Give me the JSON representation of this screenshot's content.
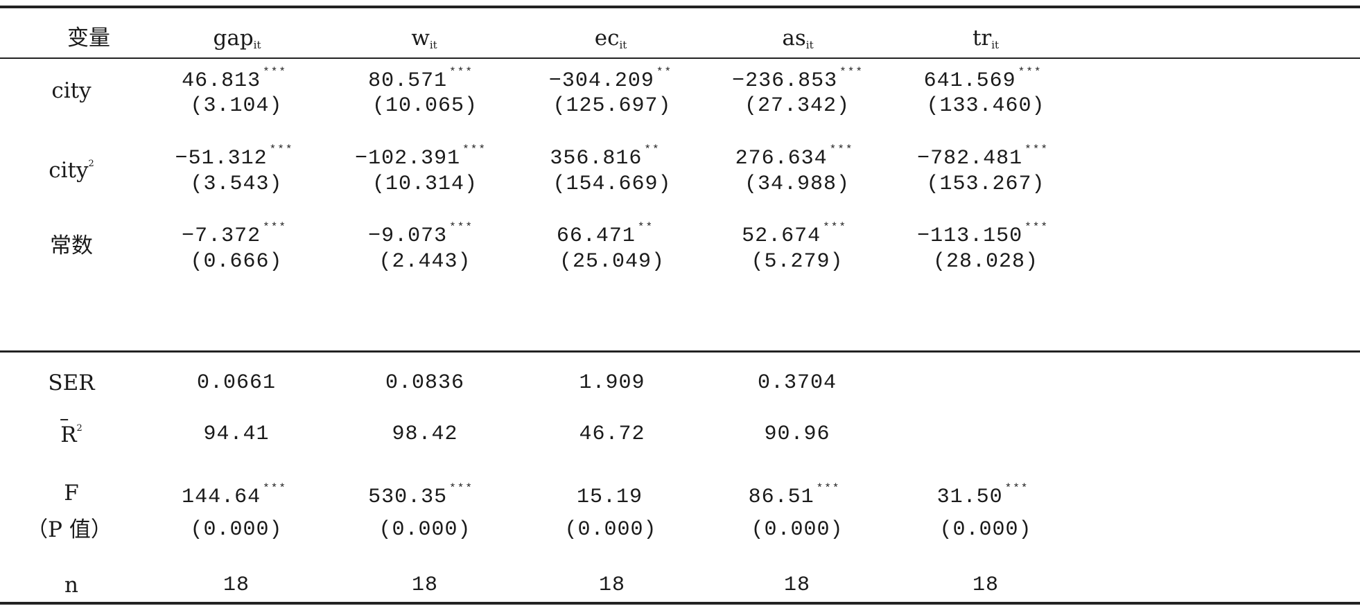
{
  "headers": {
    "variable": "变量",
    "cols": [
      {
        "base": "gap",
        "sub": "it"
      },
      {
        "base": "w",
        "sub": "it"
      },
      {
        "base": "ec",
        "sub": "it"
      },
      {
        "base": "as",
        "sub": "it"
      },
      {
        "base": "tr",
        "sub": "it"
      }
    ]
  },
  "rows": {
    "city": {
      "label": "city",
      "coef": [
        {
          "value": "46.813",
          "stars": "***"
        },
        {
          "value": "80.571",
          "stars": "***"
        },
        {
          "value": "−304.209",
          "stars": "**"
        },
        {
          "value": "−236.853",
          "stars": "***"
        },
        {
          "value": "641.569",
          "stars": "***"
        }
      ],
      "se": [
        "(3.104)",
        "(10.065)",
        "(125.697)",
        "(27.342)",
        "(133.460)"
      ]
    },
    "city2": {
      "label": "city",
      "sup": "2",
      "coef": [
        {
          "value": "−51.312",
          "stars": "***"
        },
        {
          "value": "−102.391",
          "stars": "***"
        },
        {
          "value": "356.816",
          "stars": "**"
        },
        {
          "value": "276.634",
          "stars": "***"
        },
        {
          "value": "−782.481",
          "stars": "***"
        }
      ],
      "se": [
        "(3.543)",
        "(10.314)",
        "(154.669)",
        "(34.988)",
        "(153.267)"
      ]
    },
    "const": {
      "label": "常数",
      "coef": [
        {
          "value": "−7.372",
          "stars": "***"
        },
        {
          "value": "−9.073",
          "stars": "***"
        },
        {
          "value": "66.471",
          "stars": "**"
        },
        {
          "value": "52.674",
          "stars": "***"
        },
        {
          "value": "−113.150",
          "stars": "***"
        }
      ],
      "se": [
        "(0.666)",
        "(2.443)",
        "(25.049)",
        "(5.279)",
        "(28.028)"
      ]
    }
  },
  "stats": {
    "ser": {
      "label": "SER",
      "values": [
        "0.0661",
        "0.0836",
        "1.909",
        "0.3704",
        ""
      ]
    },
    "r2": {
      "label": "R",
      "sup": "2",
      "values": [
        "94.41",
        "98.42",
        "46.72",
        "90.96",
        ""
      ]
    },
    "f": {
      "label": "F",
      "label2": "（P 值）",
      "values": [
        {
          "value": "144.64",
          "stars": "***"
        },
        {
          "value": "530.35",
          "stars": "***"
        },
        {
          "value": "15.19",
          "stars": ""
        },
        {
          "value": "86.51",
          "stars": "***"
        },
        {
          "value": "31.50",
          "stars": "***"
        }
      ],
      "p": [
        "(0.000)",
        "(0.000)",
        "(0.000)",
        "(0.000)",
        "(0.000)"
      ]
    },
    "n": {
      "label": "n",
      "values": [
        "18",
        "18",
        "18",
        "18",
        "18"
      ]
    }
  }
}
